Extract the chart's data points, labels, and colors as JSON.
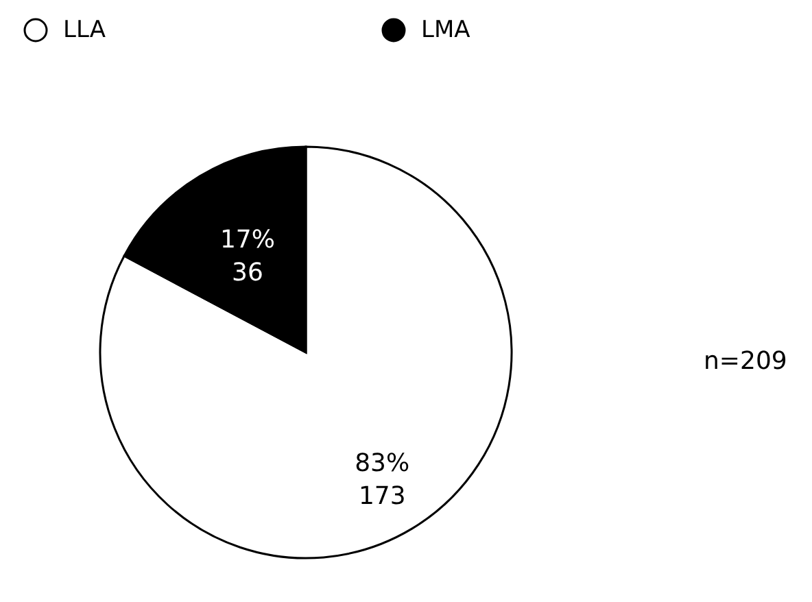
{
  "chart_data": {
    "type": "pie",
    "categories": [
      "LLA",
      "LMA"
    ],
    "values": [
      173,
      36
    ],
    "colors": [
      "#ffffff",
      "#000000"
    ],
    "value_labels": [
      "83%\n173",
      "17%\n36"
    ],
    "legend": "top",
    "annotations": [
      "n=209"
    ]
  }
}
